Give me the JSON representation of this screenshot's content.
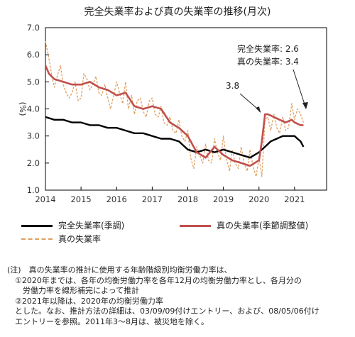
{
  "chart_data": {
    "type": "line",
    "title": "完全失業率および真の失業率の推移(月次)",
    "ylabel": "(%)",
    "xlabel": "",
    "ylim": [
      1.0,
      7.0
    ],
    "yticks": [
      "1.0",
      "2.0",
      "3.0",
      "4.0",
      "5.0",
      "6.0",
      "7.0"
    ],
    "xlim": [
      2014.0,
      2021.9
    ],
    "xticks": [
      "2014",
      "2015",
      "2016",
      "2017",
      "2018",
      "2019",
      "2020",
      "2021"
    ],
    "grid": false,
    "legend_position": "bottom",
    "annotations": {
      "peak_label": "3.8",
      "unemp_label": "完全失業率: 2.6",
      "true_label": "真の失業率: 3.4"
    },
    "series": [
      {
        "name": "完全失業率(季調)",
        "color": "#000000",
        "style": "solid",
        "x": [
          2014.0,
          2014.25,
          2014.5,
          2014.75,
          2015.0,
          2015.25,
          2015.5,
          2015.75,
          2016.0,
          2016.25,
          2016.5,
          2016.75,
          2017.0,
          2017.25,
          2017.5,
          2017.75,
          2018.0,
          2018.25,
          2018.5,
          2018.75,
          2019.0,
          2019.25,
          2019.5,
          2019.75,
          2020.0,
          2020.17,
          2020.33,
          2020.5,
          2020.67,
          2020.83,
          2021.0,
          2021.08,
          2021.17,
          2021.25
        ],
        "y": [
          3.7,
          3.6,
          3.6,
          3.5,
          3.5,
          3.4,
          3.4,
          3.3,
          3.3,
          3.2,
          3.1,
          3.1,
          3.0,
          2.9,
          2.9,
          2.8,
          2.5,
          2.4,
          2.5,
          2.4,
          2.5,
          2.4,
          2.3,
          2.2,
          2.4,
          2.6,
          2.8,
          2.9,
          3.0,
          3.0,
          3.0,
          2.9,
          2.8,
          2.6
        ]
      },
      {
        "name": "真の失業率(季節調整値)",
        "color": "#c0504d",
        "style": "solid",
        "x": [
          2014.0,
          2014.1,
          2014.25,
          2014.5,
          2014.75,
          2015.0,
          2015.25,
          2015.5,
          2015.75,
          2016.0,
          2016.25,
          2016.5,
          2016.75,
          2017.0,
          2017.25,
          2017.5,
          2017.75,
          2018.0,
          2018.25,
          2018.5,
          2018.75,
          2019.0,
          2019.25,
          2019.5,
          2019.75,
          2020.0,
          2020.08,
          2020.17,
          2020.25,
          2020.42,
          2020.58,
          2020.75,
          2020.92,
          2021.0,
          2021.17,
          2021.25
        ],
        "y": [
          5.6,
          5.3,
          5.1,
          5.0,
          4.9,
          4.9,
          5.0,
          4.8,
          4.7,
          4.5,
          4.6,
          4.1,
          4.0,
          4.1,
          4.0,
          3.5,
          3.3,
          3.0,
          2.4,
          2.2,
          2.6,
          2.3,
          2.1,
          2.0,
          1.9,
          2.1,
          2.8,
          3.8,
          3.8,
          3.7,
          3.6,
          3.5,
          3.6,
          3.5,
          3.4,
          3.4
        ]
      },
      {
        "name": "真の失業率",
        "color": "#e0a060",
        "style": "dashed",
        "x": [
          2014.0,
          2014.08,
          2014.17,
          2014.25,
          2014.33,
          2014.42,
          2014.5,
          2014.58,
          2014.67,
          2014.75,
          2014.83,
          2014.92,
          2015.0,
          2015.08,
          2015.17,
          2015.25,
          2015.33,
          2015.42,
          2015.5,
          2015.58,
          2015.67,
          2015.75,
          2015.83,
          2015.92,
          2016.0,
          2016.08,
          2016.17,
          2016.25,
          2016.33,
          2016.42,
          2016.5,
          2016.58,
          2016.67,
          2016.75,
          2016.83,
          2016.92,
          2017.0,
          2017.08,
          2017.17,
          2017.25,
          2017.33,
          2017.42,
          2017.5,
          2017.58,
          2017.67,
          2017.75,
          2017.83,
          2017.92,
          2018.0,
          2018.08,
          2018.17,
          2018.25,
          2018.33,
          2018.42,
          2018.5,
          2018.58,
          2018.67,
          2018.75,
          2018.83,
          2018.92,
          2019.0,
          2019.08,
          2019.17,
          2019.25,
          2019.33,
          2019.42,
          2019.5,
          2019.58,
          2019.67,
          2019.75,
          2019.83,
          2019.92,
          2020.0,
          2020.08,
          2020.17,
          2020.25,
          2020.33,
          2020.42,
          2020.5,
          2020.58,
          2020.67,
          2020.75,
          2020.83,
          2020.92,
          2021.0,
          2021.08,
          2021.17,
          2021.25
        ],
        "y": [
          6.5,
          6.0,
          5.3,
          4.8,
          5.2,
          5.6,
          4.9,
          4.6,
          4.4,
          4.6,
          5.0,
          4.3,
          4.4,
          5.3,
          5.1,
          4.7,
          4.9,
          5.2,
          4.6,
          4.5,
          4.9,
          4.4,
          4.0,
          4.5,
          5.0,
          4.6,
          4.2,
          5.0,
          4.0,
          4.5,
          3.8,
          4.3,
          4.4,
          3.9,
          3.7,
          4.3,
          4.4,
          3.8,
          3.7,
          4.1,
          3.5,
          3.4,
          3.7,
          3.2,
          3.1,
          3.6,
          3.0,
          2.8,
          3.2,
          2.2,
          1.8,
          2.6,
          2.3,
          2.0,
          2.7,
          2.1,
          2.0,
          2.9,
          2.4,
          2.1,
          3.0,
          2.2,
          1.7,
          2.5,
          2.0,
          1.8,
          2.6,
          2.0,
          1.7,
          2.5,
          1.9,
          1.5,
          2.2,
          1.5,
          3.6,
          3.7,
          3.2,
          3.8,
          3.3,
          3.1,
          3.7,
          3.2,
          3.3,
          4.2,
          3.6,
          4.0,
          3.8,
          3.5
        ]
      }
    ]
  },
  "legend": {
    "items": [
      {
        "label": "完全失業率(季調)",
        "color": "#000000",
        "style": "solid"
      },
      {
        "label": "真の失業率(季節調整値)",
        "color": "#c0504d",
        "style": "solid"
      },
      {
        "label": "真の失業率",
        "color": "#e0a060",
        "style": "dashed"
      }
    ]
  },
  "notes": {
    "lines": [
      "(注)　真の失業率の推計に使用する年齢階級別均衡労働力率は、",
      "　①2020年までは、各年の均衡労働力率を各年12月の均衡労働力率とし、各月分の",
      "　　労働力率を線形補完によって推計",
      "　②2021年以降は、2020年の均衡労働力率",
      "　とした。なお、推計方法の詳細は、03/09/09付けエントリー、および、08/05/06付け",
      "　エントリーを参照。2011年3～8月は、被災地を除く。"
    ]
  }
}
